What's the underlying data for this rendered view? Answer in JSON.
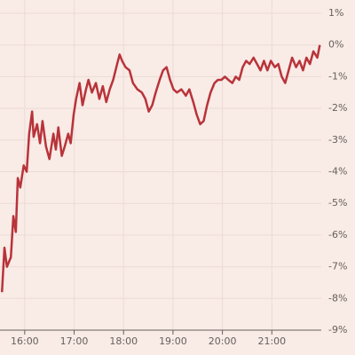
{
  "chart_data": {
    "type": "line",
    "x": [
      15.54,
      15.59,
      15.64,
      15.72,
      15.77,
      15.82,
      15.86,
      15.91,
      15.98,
      16.04,
      16.09,
      16.15,
      16.18,
      16.25,
      16.31,
      16.36,
      16.43,
      16.5,
      16.58,
      16.63,
      16.68,
      16.75,
      16.81,
      16.88,
      16.93,
      16.99,
      17.04,
      17.11,
      17.17,
      17.24,
      17.29,
      17.36,
      17.44,
      17.51,
      17.58,
      17.65,
      17.72,
      17.79,
      17.87,
      17.92,
      17.97,
      18.04,
      18.12,
      18.19,
      18.28,
      18.37,
      18.44,
      18.51,
      18.58,
      18.65,
      18.73,
      18.8,
      18.87,
      18.94,
      19.01,
      19.08,
      19.17,
      19.26,
      19.33,
      19.41,
      19.48,
      19.55,
      19.62,
      19.69,
      19.76,
      19.84,
      19.91,
      19.98,
      20.05,
      20.12,
      20.2,
      20.27,
      20.34,
      20.41,
      20.48,
      20.55,
      20.63,
      20.7,
      20.77,
      20.84,
      20.91,
      20.98,
      21.06,
      21.13,
      21.2,
      21.27,
      21.34,
      21.41,
      21.49,
      21.56,
      21.63,
      21.7,
      21.77,
      21.84,
      21.92,
      21.97
    ],
    "values": [
      -7.8,
      -6.4,
      -7.0,
      -6.7,
      -5.4,
      -5.9,
      -4.2,
      -4.5,
      -3.8,
      -4.0,
      -2.8,
      -2.1,
      -2.9,
      -2.5,
      -3.1,
      -2.4,
      -3.2,
      -3.6,
      -2.8,
      -3.3,
      -2.6,
      -3.5,
      -3.2,
      -2.8,
      -3.1,
      -2.2,
      -1.7,
      -1.2,
      -1.9,
      -1.4,
      -1.1,
      -1.5,
      -1.2,
      -1.7,
      -1.3,
      -1.8,
      -1.4,
      -1.1,
      -0.6,
      -0.3,
      -0.5,
      -0.7,
      -0.8,
      -1.2,
      -1.4,
      -1.5,
      -1.7,
      -2.1,
      -1.9,
      -1.5,
      -1.1,
      -0.8,
      -0.7,
      -1.1,
      -1.4,
      -1.5,
      -1.4,
      -1.6,
      -1.4,
      -1.8,
      -2.2,
      -2.5,
      -2.4,
      -1.9,
      -1.5,
      -1.2,
      -1.1,
      -1.1,
      -1.0,
      -1.1,
      -1.2,
      -1.0,
      -1.1,
      -0.7,
      -0.5,
      -0.6,
      -0.4,
      -0.6,
      -0.8,
      -0.5,
      -0.8,
      -0.5,
      -0.7,
      -0.6,
      -1.0,
      -1.2,
      -0.8,
      -0.4,
      -0.7,
      -0.5,
      -0.8,
      -0.4,
      -0.6,
      -0.2,
      -0.4,
      0.0
    ],
    "color": "#b8333a",
    "xlim": [
      15.5,
      22
    ],
    "xticks": [
      {
        "value": 16,
        "label": "16:00"
      },
      {
        "value": 17,
        "label": "17:00"
      },
      {
        "value": 18,
        "label": "18:00"
      },
      {
        "value": 19,
        "label": "19:00"
      },
      {
        "value": 20,
        "label": "20:00"
      },
      {
        "value": 21,
        "label": "21:00"
      }
    ],
    "ylim": [
      -9,
      1
    ],
    "yticks": [
      {
        "value": 1,
        "label": "1%"
      },
      {
        "value": 0,
        "label": "0%"
      },
      {
        "value": -1,
        "label": "-1%"
      },
      {
        "value": -2,
        "label": "-2%"
      },
      {
        "value": -3,
        "label": "-3%"
      },
      {
        "value": -4,
        "label": "-4%"
      },
      {
        "value": -5,
        "label": "-5%"
      },
      {
        "value": -6,
        "label": "-6%"
      },
      {
        "value": -7,
        "label": "-7%"
      },
      {
        "value": -8,
        "label": "-8%"
      },
      {
        "value": -9,
        "label": "-9%"
      }
    ],
    "grid": true
  }
}
